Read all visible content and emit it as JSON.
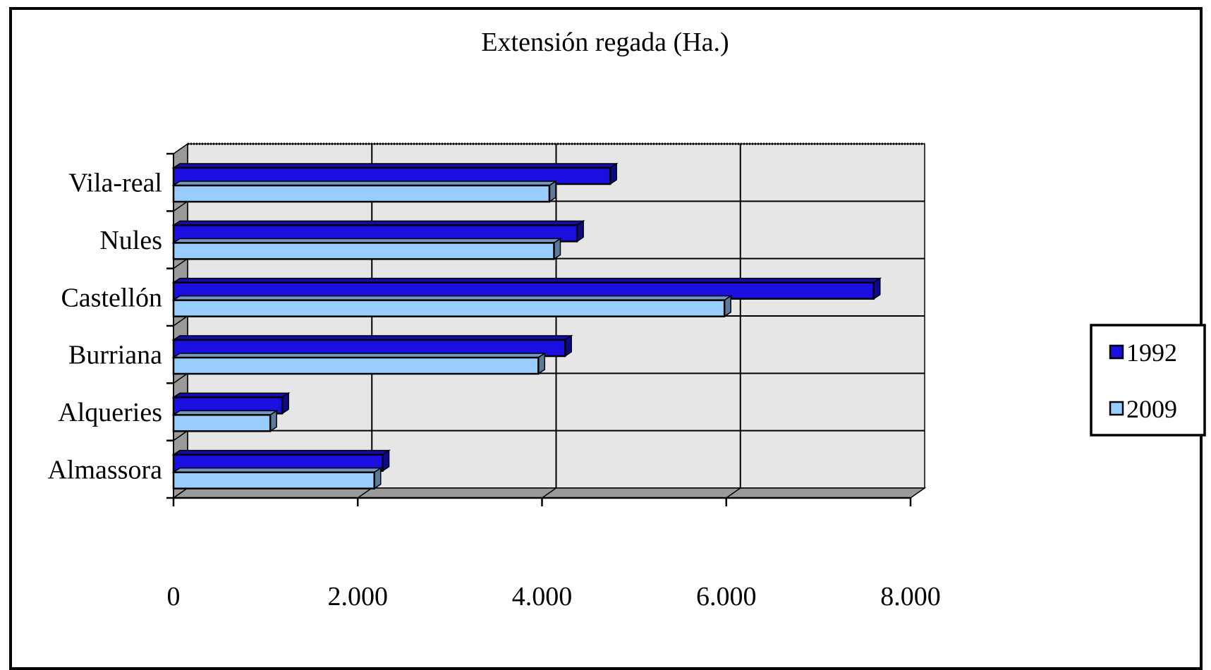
{
  "chart_data": {
    "type": "bar",
    "orientation": "horizontal",
    "title": "Extensión regada (Ha.)",
    "xlabel": "",
    "ylabel": "",
    "categories": [
      "Almassora",
      "Alqueries",
      "Burriana",
      "Castellón",
      "Nules",
      "Vila-real"
    ],
    "series": [
      {
        "name": "1992",
        "values": [
          2270,
          1180,
          4250,
          7600,
          4380,
          4740
        ]
      },
      {
        "name": "2009",
        "values": [
          2180,
          1050,
          3960,
          5980,
          4130,
          4080
        ]
      }
    ],
    "xlim": [
      0,
      8000
    ],
    "x_ticks": [
      {
        "value": 0,
        "label": "0"
      },
      {
        "value": 2000,
        "label": "2.000"
      },
      {
        "value": 4000,
        "label": "4.000"
      },
      {
        "value": 6000,
        "label": "6.000"
      },
      {
        "value": 8000,
        "label": "8.000"
      }
    ],
    "grid": true,
    "legend_position": "right",
    "three_d": true
  },
  "colors": {
    "series_1992": "#1a0fe0",
    "series_2009": "#99ccff",
    "wall": "#e6e6e6",
    "floor": "#9a9a9a",
    "frame": "#000000"
  }
}
